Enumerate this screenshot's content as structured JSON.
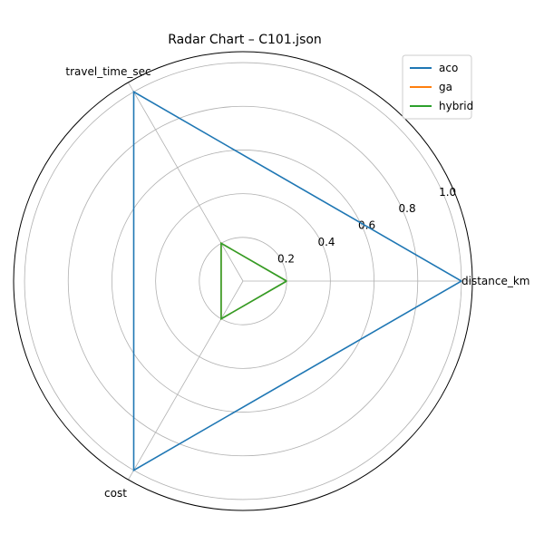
{
  "chart_data": {
    "type": "radar",
    "title": "Radar Chart – C101.json",
    "axes": [
      "distance_km",
      "travel_time_sec",
      "cost"
    ],
    "rlim": [
      0,
      1.05
    ],
    "r_ticks": [
      "0.2",
      "0.4",
      "0.6",
      "0.8",
      "1.0"
    ],
    "grid": true,
    "legend_position": "top-right",
    "series": [
      {
        "name": "aco",
        "color": "#1f77b4",
        "values": [
          1.0,
          1.0,
          1.0
        ]
      },
      {
        "name": "ga",
        "color": "#ff7f0e",
        "values": [
          0.2,
          0.2,
          0.2
        ]
      },
      {
        "name": "hybrid",
        "color": "#2ca02c",
        "values": [
          0.2,
          0.2,
          0.2
        ]
      }
    ]
  }
}
